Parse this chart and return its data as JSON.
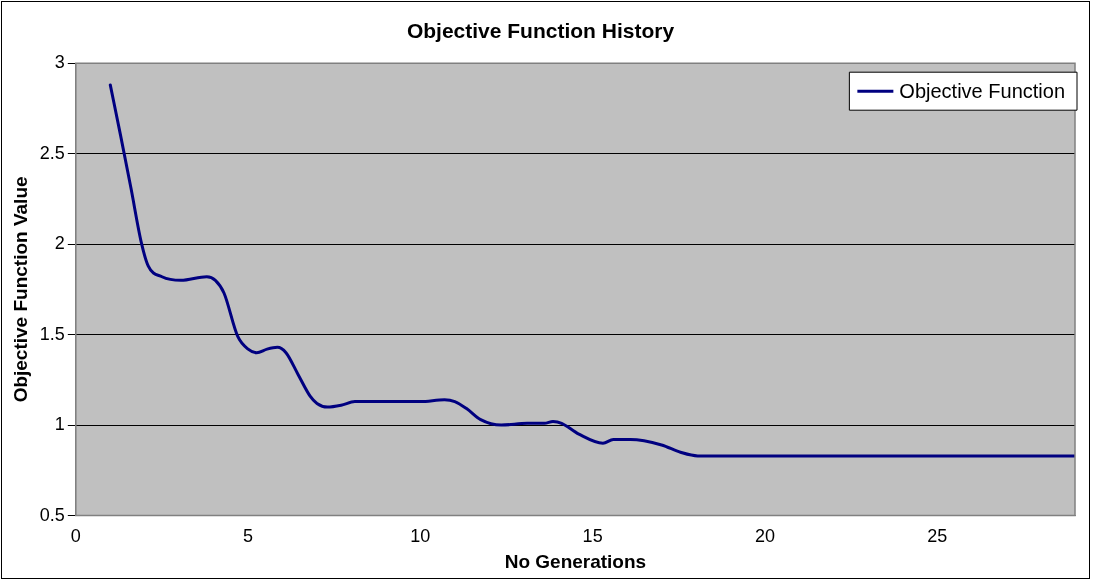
{
  "chart_data": {
    "type": "line",
    "title": "Objective Function History",
    "xlabel": "No Generations",
    "ylabel": "Objective Function Value",
    "xlim": [
      0,
      29
    ],
    "xticks": [
      0,
      5,
      10,
      15,
      20,
      25
    ],
    "ylim": [
      0.5,
      3
    ],
    "yticks": [
      0.5,
      1,
      1.5,
      2,
      2.5,
      3
    ],
    "grid": "y",
    "legend": "top right",
    "marker": "none",
    "line_style": "solid",
    "series": [
      {
        "name": "Objective Function",
        "color": "#000080",
        "x": [
          1,
          1.3,
          1.6,
          1.9,
          2.1,
          2.5,
          3.05,
          3.8,
          4.05,
          4.3,
          4.7,
          5,
          5.25,
          5.55,
          5.85,
          6.1,
          6.45,
          6.8,
          7,
          7.3,
          7.7,
          8.1,
          10,
          10.7,
          11,
          11.35,
          11.75,
          12.35,
          13.1,
          13.6,
          13.85,
          14.1,
          14.6,
          15.3,
          15.6,
          16.1,
          17,
          17.55,
          18.05,
          20,
          25,
          29
        ],
        "values": [
          2.88,
          2.6,
          2.31,
          2.01,
          1.88,
          1.82,
          1.8,
          1.82,
          1.8,
          1.73,
          1.49,
          1.42,
          1.4,
          1.42,
          1.43,
          1.4,
          1.28,
          1.16,
          1.12,
          1.1,
          1.11,
          1.13,
          1.13,
          1.14,
          1.13,
          1.09,
          1.03,
          1,
          1.01,
          1.01,
          1.02,
          1.01,
          0.95,
          0.9,
          0.92,
          0.92,
          0.89,
          0.85,
          0.83,
          0.83,
          0.83,
          0.83
        ]
      }
    ]
  }
}
